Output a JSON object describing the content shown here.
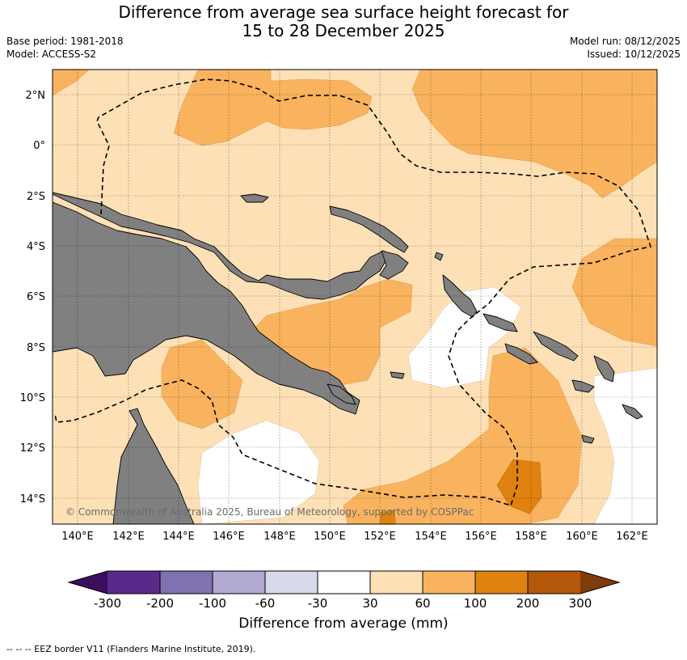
{
  "title_line1": "Difference from average sea surface height forecast for",
  "title_line2": "15 to 28 December 2025",
  "base_period": "Base period: 1981-2018",
  "model": "Model: ACCESS-S2",
  "model_run": "Model run: 08/12/2025",
  "issued": "Issued: 10/12/2025",
  "copyright": "© Commonwealth of Australia 2025, Bureau of Meteorology, supported by COSPPac",
  "lat_labels": [
    "2°N",
    "0°",
    "2°S",
    "4°S",
    "6°S",
    "8°S",
    "10°S",
    "12°S",
    "14°S"
  ],
  "lon_labels": [
    "140°E",
    "142°E",
    "144°E",
    "146°E",
    "148°E",
    "150°E",
    "152°E",
    "154°E",
    "156°E",
    "158°E",
    "160°E",
    "162°E"
  ],
  "colorbar": {
    "ticks": [
      "-300",
      "-200",
      "-100",
      "-60",
      "-30",
      "30",
      "60",
      "100",
      "200",
      "300"
    ],
    "colors": [
      "#3b0f5e",
      "#5a2a8a",
      "#8072b0",
      "#b1a9d2",
      "#d8daeb",
      "#ffffff",
      "#fde0b6",
      "#f9b35e",
      "#e0820f",
      "#b3580a",
      "#7f3b08"
    ],
    "label": "Difference from average (mm)"
  },
  "legend_note": "--  --  -- EEZ border V11 (Flanders Marine Institute, 2019).",
  "colors": {
    "land": "#808080",
    "level_30_60": "#fde0b6",
    "level_60_100": "#f9b35e",
    "level_100_200": "#e0820f",
    "level_neutral": "#ffffff"
  }
}
